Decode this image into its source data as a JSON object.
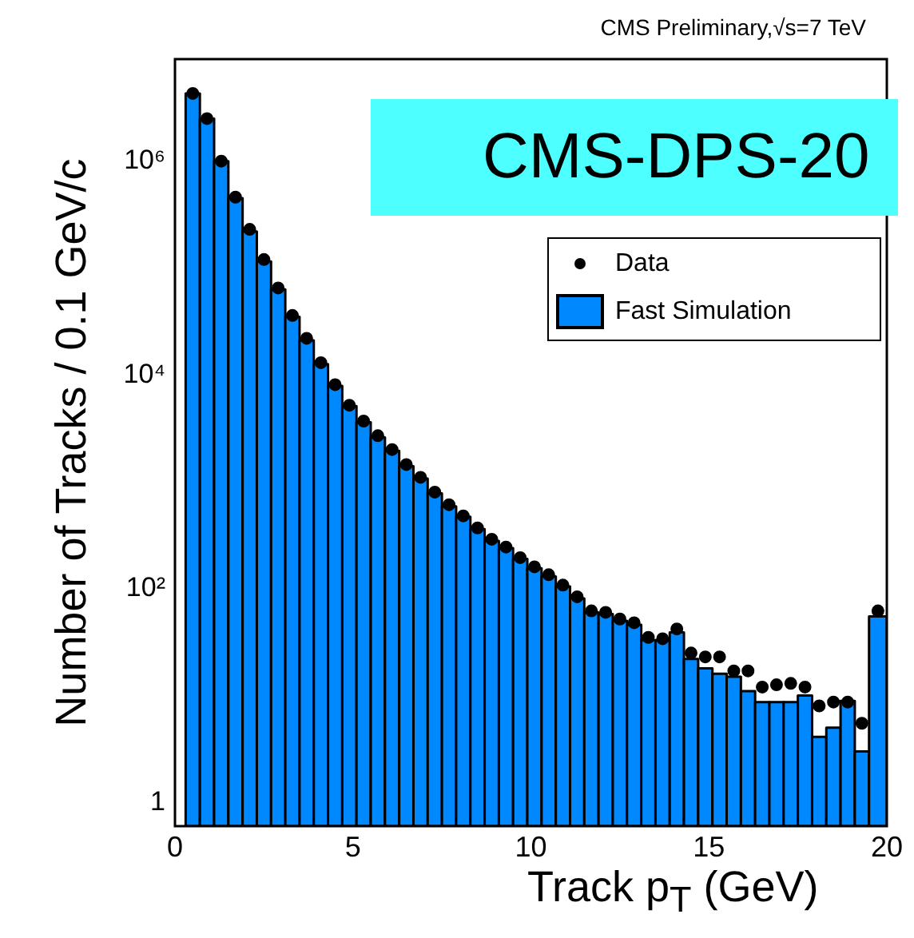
{
  "chart_data": {
    "type": "histogram",
    "title": "CMS Preliminary,√s=7 TeV",
    "xlabel": "Track p$_{T}$ (GeV)",
    "ylabel": "Number of Tracks / 0.1 GeV/c",
    "annotations": [
      "CMS-DPS-20"
    ],
    "bins": [
      0.3,
      0.7,
      1.1,
      1.5,
      1.9,
      2.3,
      2.7,
      3.1,
      3.5,
      3.9,
      4.3,
      4.7,
      5.1,
      5.5,
      5.9,
      6.3,
      6.7,
      7.1,
      7.5,
      7.9,
      8.3,
      8.7,
      9.1,
      9.5,
      9.9,
      10.3,
      10.7,
      11.1,
      11.5,
      11.9,
      12.3,
      12.7,
      13.1,
      13.5,
      13.9,
      14.3,
      14.7,
      15.1,
      15.5,
      15.9,
      16.3,
      16.7,
      17.1,
      17.5,
      17.9,
      18.3,
      18.7,
      19.1,
      19.5,
      20
    ],
    "series": [
      {
        "name": "Fast Simulation",
        "color": "#0088ff",
        "values": [
          4300000,
          2500000,
          1000000,
          450000,
          220000,
          115000,
          63000,
          35000,
          21000,
          12600,
          7900,
          5100,
          3600,
          2600,
          1950,
          1400,
          1070,
          780,
          590,
          470,
          360,
          280,
          240,
          190,
          155,
          130,
          105,
          81,
          60,
          58,
          50,
          46,
          33,
          33,
          39,
          22,
          18,
          16,
          15,
          11,
          8.7,
          8.7,
          8.7,
          10,
          4.1,
          5,
          8.9,
          3,
          55
        ]
      },
      {
        "name": "Data",
        "type": "scatter",
        "color": "#000000",
        "marker": "circle",
        "x": [
          0.5,
          0.9,
          1.3,
          1.7,
          2.1,
          2.5,
          2.9,
          3.3,
          3.7,
          4.1,
          4.5,
          4.9,
          5.3,
          5.7,
          6.1,
          6.5,
          6.9,
          7.3,
          7.7,
          8.1,
          8.5,
          8.9,
          9.3,
          9.7,
          10.1,
          10.5,
          10.9,
          11.3,
          11.7,
          12.1,
          12.5,
          12.9,
          13.3,
          13.7,
          14.1,
          14.5,
          14.9,
          15.3,
          15.7,
          16.1,
          16.5,
          16.9,
          17.3,
          17.7,
          18.1,
          18.5,
          18.9,
          19.3,
          19.75
        ],
        "values": [
          4300000,
          2500000,
          1000000,
          460000,
          230000,
          120000,
          65000,
          36000,
          22000,
          13000,
          8100,
          5200,
          3700,
          2700,
          2000,
          1450,
          1100,
          800,
          610,
          480,
          370,
          290,
          245,
          195,
          160,
          135,
          108,
          84,
          62,
          60,
          52,
          48,
          35,
          34,
          42,
          25,
          23,
          23,
          17,
          17,
          12,
          12.6,
          13,
          12,
          8,
          8.7,
          8.7,
          5.5,
          62
        ]
      }
    ],
    "xlim": [
      0,
      20
    ],
    "xticks": [
      0,
      5,
      10,
      15,
      20
    ],
    "ylim": [
      0.6,
      9000000
    ],
    "yticks": [
      1,
      {
        "value": 100,
        "label": "10²"
      },
      {
        "value": 10000,
        "label": "10⁴"
      },
      {
        "value": 1000000,
        "label": "10⁶"
      }
    ],
    "log": "y",
    "grid": false,
    "legend": "top right"
  }
}
